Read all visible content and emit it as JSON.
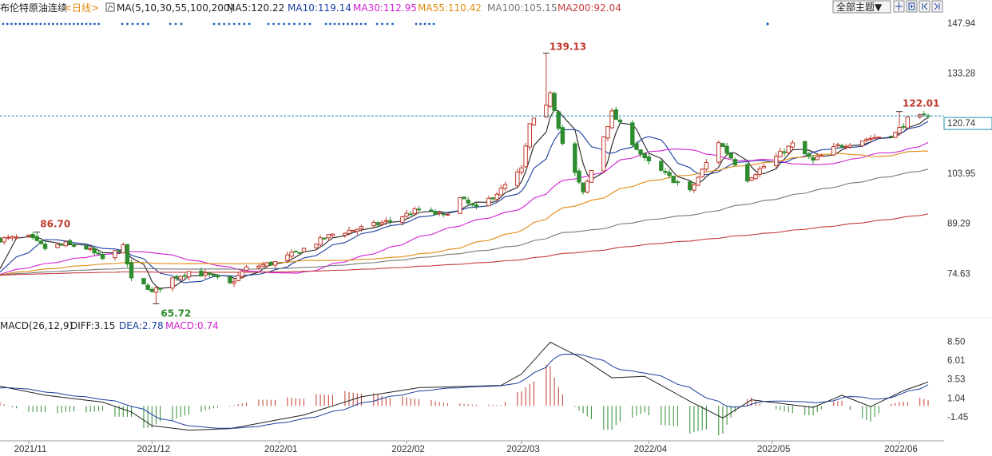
{
  "header": {
    "instrument": "布伦特原油连续",
    "period": "<日线>",
    "ma_label": "MA(5,10,30,55,100,200)",
    "ma_values": [
      {
        "text": "MA5:120.22",
        "color": "#222222"
      },
      {
        "text": "MA10:119.14",
        "color": "#1a3fa0"
      },
      {
        "text": "MA30:112.95",
        "color": "#d21fd2"
      },
      {
        "text": "MA55:110.42",
        "color": "#e08a10"
      },
      {
        "text": "MA100:105.15",
        "color": "#777777"
      },
      {
        "text": "MA200:92.04",
        "color": "#c43c3c"
      }
    ],
    "theme_button": "全部主题▼"
  },
  "macd_header": {
    "label": "MACD(26,12,9)",
    "diff": "DIFF:3.15",
    "dea": "DEA:2.78",
    "macd": "MACD:0.74"
  },
  "annotations": {
    "high_all": "139.13",
    "high_recent": "122.01",
    "low": "65.72",
    "early_high": "86.70",
    "current_price": "120.74"
  },
  "colors": {
    "up": "#c0392b",
    "down": "#2e8b2e",
    "ma5": "#222222",
    "ma10": "#1a3fa0",
    "ma30": "#d21fd2",
    "ma55": "#e08a10",
    "ma100": "#777777",
    "ma200": "#c43c3c",
    "macd_up": "#c0392b",
    "macd_down": "#2e8b2e"
  },
  "chart_data": [
    {
      "type": "candlestick",
      "instrument": "布伦特原油连续",
      "period": "<日线>",
      "y_ticks": [
        147.94,
        133.28,
        120.74,
        103.95,
        89.29,
        74.63
      ],
      "ylim": [
        63,
        150
      ],
      "x_ticks": [
        "2021/11",
        "2021/12",
        "2022/01",
        "2022/02",
        "2022/03",
        "2022/04",
        "2022/05",
        "2022/06"
      ],
      "grid": false,
      "current_price": 120.74,
      "annotated_points": [
        {
          "label": "86.70",
          "value": 86.7
        },
        {
          "label": "65.72",
          "value": 65.72
        },
        {
          "label": "139.13",
          "value": 139.13
        },
        {
          "label": "122.01",
          "value": 122.01
        }
      ],
      "price_anchors": [
        {
          "date": "2021-10-25",
          "close": 84.6
        },
        {
          "date": "2021-11-01",
          "close": 85.2
        },
        {
          "date": "2021-11-05",
          "close": 82.0
        },
        {
          "date": "2021-11-10",
          "close": 83.2
        },
        {
          "date": "2021-11-15",
          "close": 82.0
        },
        {
          "date": "2021-11-19",
          "close": 78.8
        },
        {
          "date": "2021-11-24",
          "close": 82.2
        },
        {
          "date": "2021-11-26",
          "close": 72.7
        },
        {
          "date": "2021-11-30",
          "close": 70.6
        },
        {
          "date": "2021-12-01",
          "close": 68.9
        },
        {
          "date": "2021-12-06",
          "close": 73.1
        },
        {
          "date": "2021-12-10",
          "close": 75.2
        },
        {
          "date": "2021-12-15",
          "close": 73.9
        },
        {
          "date": "2021-12-20",
          "close": 71.5
        },
        {
          "date": "2021-12-24",
          "close": 76.1
        },
        {
          "date": "2021-12-31",
          "close": 77.8
        },
        {
          "date": "2022-01-07",
          "close": 81.8
        },
        {
          "date": "2022-01-14",
          "close": 86.1
        },
        {
          "date": "2022-01-21",
          "close": 87.9
        },
        {
          "date": "2022-01-28",
          "close": 90.0
        },
        {
          "date": "2022-02-04",
          "close": 93.3
        },
        {
          "date": "2022-02-10",
          "close": 91.4
        },
        {
          "date": "2022-02-14",
          "close": 96.5
        },
        {
          "date": "2022-02-18",
          "close": 93.5
        },
        {
          "date": "2022-02-24",
          "close": 99.1
        },
        {
          "date": "2022-03-01",
          "close": 105.0
        },
        {
          "date": "2022-03-03",
          "close": 118.1
        },
        {
          "date": "2022-03-07",
          "close": 123.2
        },
        {
          "date": "2022-03-08",
          "close": 127.98
        },
        {
          "date": "2022-03-11",
          "close": 112.7
        },
        {
          "date": "2022-03-16",
          "close": 98.0
        },
        {
          "date": "2022-03-23",
          "close": 121.6
        },
        {
          "date": "2022-03-31",
          "close": 107.9
        },
        {
          "date": "2022-04-11",
          "close": 98.5
        },
        {
          "date": "2022-04-18",
          "close": 113.2
        },
        {
          "date": "2022-04-25",
          "close": 102.3
        },
        {
          "date": "2022-05-06",
          "close": 112.4
        },
        {
          "date": "2022-05-11",
          "close": 107.5
        },
        {
          "date": "2022-05-17",
          "close": 111.9
        },
        {
          "date": "2022-05-24",
          "close": 114.0
        },
        {
          "date": "2022-05-31",
          "close": 115.6
        },
        {
          "date": "2022-06-03",
          "close": 119.7
        },
        {
          "date": "2022-06-08",
          "close": 120.74
        }
      ],
      "moving_averages": [
        {
          "name": "MA5",
          "last": 120.22
        },
        {
          "name": "MA10",
          "last": 119.14
        },
        {
          "name": "MA30",
          "last": 112.95
        },
        {
          "name": "MA55",
          "last": 110.42
        },
        {
          "name": "MA100",
          "last": 105.15
        },
        {
          "name": "MA200",
          "last": 92.04
        }
      ]
    },
    {
      "type": "line",
      "name": "MACD(26,12,9)",
      "y_ticks": [
        8.5,
        6.01,
        3.53,
        1.04,
        -1.45
      ],
      "ylim": [
        -4.5,
        9.5
      ],
      "x_ticks": [
        "2021/11",
        "2021/12",
        "2022/01",
        "2022/02",
        "2022/03",
        "2022/04",
        "2022/05",
        "2022/06"
      ],
      "series": [
        {
          "name": "DIFF",
          "last": 3.15
        },
        {
          "name": "DEA",
          "last": 2.78
        },
        {
          "name": "MACD",
          "last": 0.74
        }
      ],
      "diff_anchors": [
        {
          "date": "2021-10-25",
          "value": 2.6
        },
        {
          "date": "2021-11-05",
          "value": 1.4
        },
        {
          "date": "2021-11-19",
          "value": 0.5
        },
        {
          "date": "2021-11-26",
          "value": -0.8
        },
        {
          "date": "2021-12-01",
          "value": -2.6
        },
        {
          "date": "2021-12-10",
          "value": -3.2
        },
        {
          "date": "2021-12-20",
          "value": -3.0
        },
        {
          "date": "2022-01-07",
          "value": -1.2
        },
        {
          "date": "2022-01-21",
          "value": 1.2
        },
        {
          "date": "2022-02-04",
          "value": 2.4
        },
        {
          "date": "2022-02-24",
          "value": 2.7
        },
        {
          "date": "2022-03-01",
          "value": 4.2
        },
        {
          "date": "2022-03-08",
          "value": 8.4
        },
        {
          "date": "2022-03-16",
          "value": 6.2
        },
        {
          "date": "2022-03-23",
          "value": 3.7
        },
        {
          "date": "2022-03-31",
          "value": 3.9
        },
        {
          "date": "2022-04-11",
          "value": 0.6
        },
        {
          "date": "2022-04-19",
          "value": -1.6
        },
        {
          "date": "2022-04-26",
          "value": 0.8
        },
        {
          "date": "2022-05-11",
          "value": -0.2
        },
        {
          "date": "2022-05-18",
          "value": 1.4
        },
        {
          "date": "2022-05-25",
          "value": -0.1
        },
        {
          "date": "2022-06-02",
          "value": 2.0
        },
        {
          "date": "2022-06-08",
          "value": 3.15
        }
      ]
    }
  ]
}
